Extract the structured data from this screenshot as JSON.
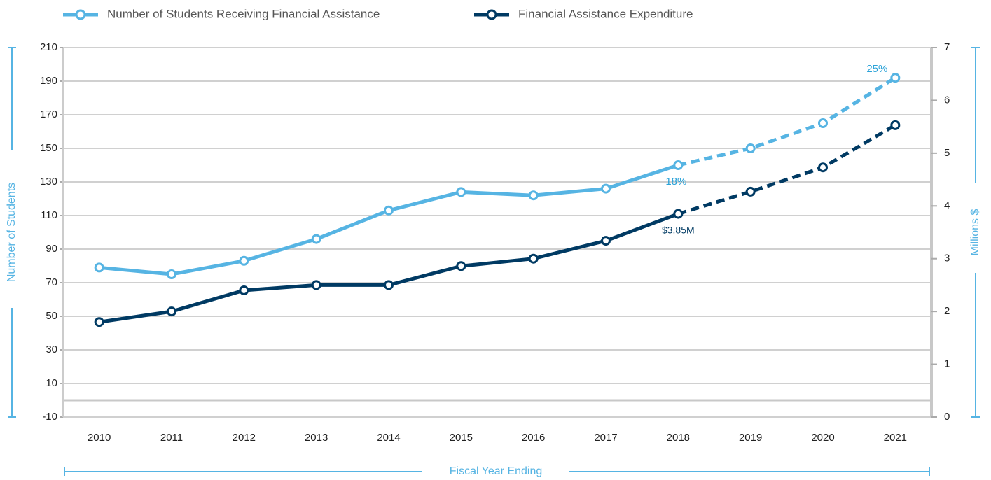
{
  "chart_data": {
    "type": "line",
    "categories": [
      "2010",
      "2011",
      "2012",
      "2013",
      "2014",
      "2015",
      "2016",
      "2017",
      "2018",
      "2019",
      "2020",
      "2021"
    ],
    "series": [
      {
        "name": "Number of Students Receiving Financial Assistance",
        "color": "#56b4e3",
        "axis": "y",
        "values": [
          79,
          75,
          83,
          96,
          113,
          124,
          122,
          126,
          140,
          150,
          165,
          192
        ]
      },
      {
        "name": "Financial Assistance Expenditure",
        "color": "#003a63",
        "axis": "y2",
        "values": [
          1.8,
          2.0,
          2.4,
          2.5,
          2.5,
          2.86,
          3.0,
          3.34,
          3.85,
          4.27,
          4.73,
          5.53
        ],
        "value_labels": [
          null,
          null,
          null,
          null,
          null,
          null,
          null,
          null,
          "$3.85M",
          null,
          null,
          null
        ]
      }
    ],
    "dashed_from_category": "2018",
    "annotations": [
      "25%",
      "18%"
    ],
    "ylabel": "Number of Students",
    "y2label": "Millions $",
    "xlabel": "Fiscal Year Ending",
    "ylim": [
      -10,
      210
    ],
    "yticks": [
      -10,
      10,
      30,
      50,
      70,
      90,
      110,
      130,
      150,
      170,
      190,
      210
    ],
    "y2lim": [
      0,
      7
    ],
    "y2ticks": [
      0,
      1,
      2,
      3,
      4,
      5,
      6,
      7
    ],
    "zero_line": 0,
    "grid": true
  }
}
